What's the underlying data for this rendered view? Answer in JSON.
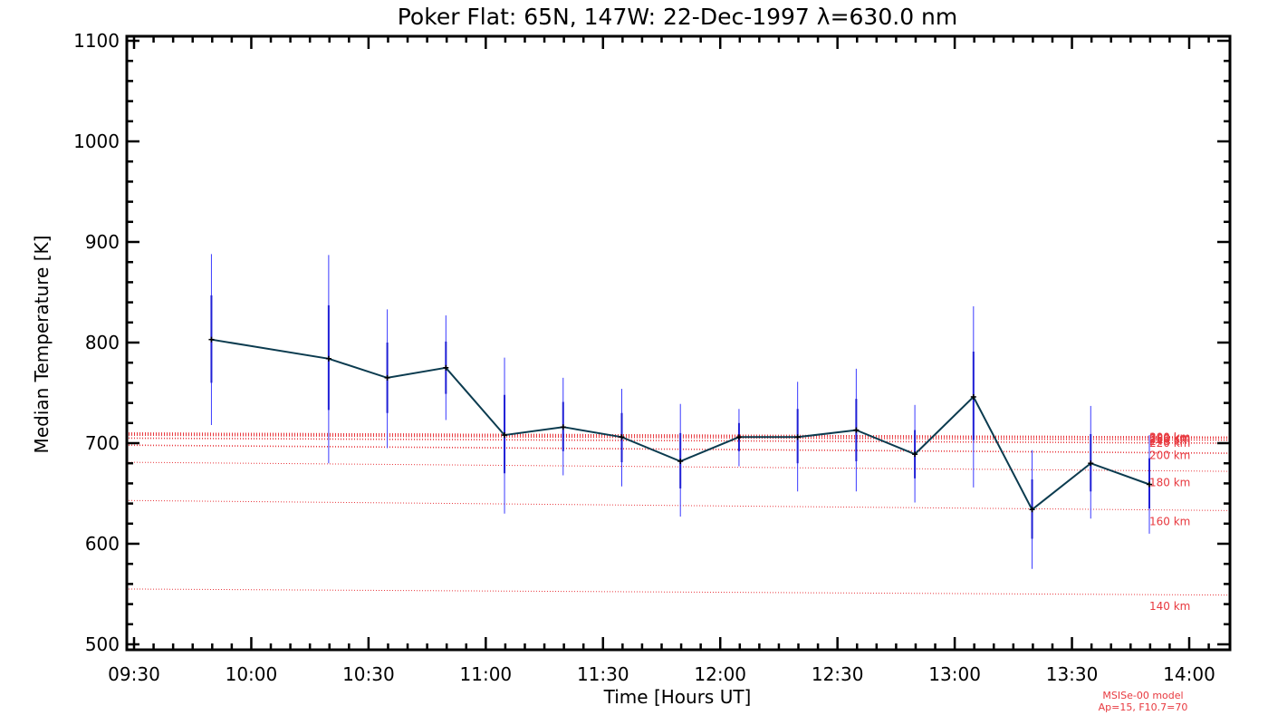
{
  "chart_data": {
    "type": "line",
    "title": "Poker Flat: 65N, 147W: 22-Dec-1997 λ=630.0 nm",
    "xlabel": "Time [Hours UT]",
    "ylabel": "Median Temperature [K]",
    "xlim": [
      9.5,
      14.15
    ],
    "ylim": [
      500,
      1100
    ],
    "x_ticks": [
      {
        "value": 9.5,
        "label": "09:30"
      },
      {
        "value": 10.0,
        "label": "10:00"
      },
      {
        "value": 10.5,
        "label": "10:30"
      },
      {
        "value": 11.0,
        "label": "11:00"
      },
      {
        "value": 11.5,
        "label": "11:30"
      },
      {
        "value": 12.0,
        "label": "12:00"
      },
      {
        "value": 12.5,
        "label": "12:30"
      },
      {
        "value": 13.0,
        "label": "13:00"
      },
      {
        "value": 13.5,
        "label": "13:30"
      },
      {
        "value": 14.0,
        "label": "14:00"
      }
    ],
    "y_ticks": [
      {
        "value": 500,
        "label": "500"
      },
      {
        "value": 600,
        "label": "600"
      },
      {
        "value": 700,
        "label": "700"
      },
      {
        "value": 800,
        "label": "800"
      },
      {
        "value": 900,
        "label": "900"
      },
      {
        "value": 1000,
        "label": "1000"
      },
      {
        "value": 1100,
        "label": "1100"
      }
    ],
    "measurements": {
      "colors": {
        "line": "#0b3b4f",
        "inner_error": "#1f1fd6",
        "outer_error": "#3a3aff"
      },
      "points": [
        {
          "x": 9.83,
          "y": 803,
          "inner": [
            760,
            847
          ],
          "outer": [
            718,
            888
          ]
        },
        {
          "x": 10.33,
          "y": 784,
          "inner": [
            733,
            837
          ],
          "outer": [
            680,
            887
          ]
        },
        {
          "x": 10.58,
          "y": 765,
          "inner": [
            730,
            800
          ],
          "outer": [
            695,
            833
          ]
        },
        {
          "x": 10.83,
          "y": 775,
          "inner": [
            749,
            801
          ],
          "outer": [
            723,
            827
          ]
        },
        {
          "x": 11.08,
          "y": 708,
          "inner": [
            670,
            748
          ],
          "outer": [
            630,
            785
          ]
        },
        {
          "x": 11.33,
          "y": 716,
          "inner": [
            692,
            741
          ],
          "outer": [
            668,
            765
          ]
        },
        {
          "x": 11.58,
          "y": 706,
          "inner": [
            681,
            730
          ],
          "outer": [
            657,
            754
          ]
        },
        {
          "x": 11.83,
          "y": 682,
          "inner": [
            655,
            710
          ],
          "outer": [
            627,
            739
          ]
        },
        {
          "x": 12.08,
          "y": 706,
          "inner": [
            692,
            720
          ],
          "outer": [
            677,
            734
          ]
        },
        {
          "x": 12.33,
          "y": 706,
          "inner": [
            680,
            734
          ],
          "outer": [
            652,
            761
          ]
        },
        {
          "x": 12.58,
          "y": 713,
          "inner": [
            682,
            744
          ],
          "outer": [
            652,
            774
          ]
        },
        {
          "x": 12.83,
          "y": 689,
          "inner": [
            665,
            713
          ],
          "outer": [
            641,
            738
          ]
        },
        {
          "x": 13.08,
          "y": 746,
          "inner": [
            703,
            791
          ],
          "outer": [
            656,
            836
          ]
        },
        {
          "x": 13.33,
          "y": 634,
          "inner": [
            605,
            664
          ],
          "outer": [
            575,
            693
          ]
        },
        {
          "x": 13.58,
          "y": 680,
          "inner": [
            652,
            709
          ],
          "outer": [
            625,
            737
          ]
        },
        {
          "x": 13.83,
          "y": 659,
          "inner": [
            635,
            685
          ],
          "outer": [
            610,
            708
          ]
        }
      ]
    },
    "model": {
      "color": "#e8393f",
      "note_lines": [
        "MSISe-00 model",
        "Ap=15, F10.7=70"
      ],
      "curves": [
        {
          "label": "140 km",
          "start": 555,
          "end": 549,
          "label_y": 538
        },
        {
          "label": "160 km",
          "start": 643,
          "end": 633,
          "label_y": 622
        },
        {
          "label": "180 km",
          "start": 681,
          "end": 672,
          "label_y": 661
        },
        {
          "label": "200 km",
          "start": 698,
          "end": 690,
          "label_y": 688
        },
        {
          "label": "220 km",
          "start": 705,
          "end": 700,
          "label_y": 700
        },
        {
          "label": "240 km",
          "start": 708,
          "end": 703,
          "label_y": 702
        },
        {
          "label": "260 km",
          "start": 709,
          "end": 705,
          "label_y": 704
        },
        {
          "label": "280 km",
          "start": 710,
          "end": 706,
          "label_y": 705
        },
        {
          "label": "300 km",
          "start": 710,
          "end": 706,
          "label_y": 706
        }
      ]
    }
  }
}
